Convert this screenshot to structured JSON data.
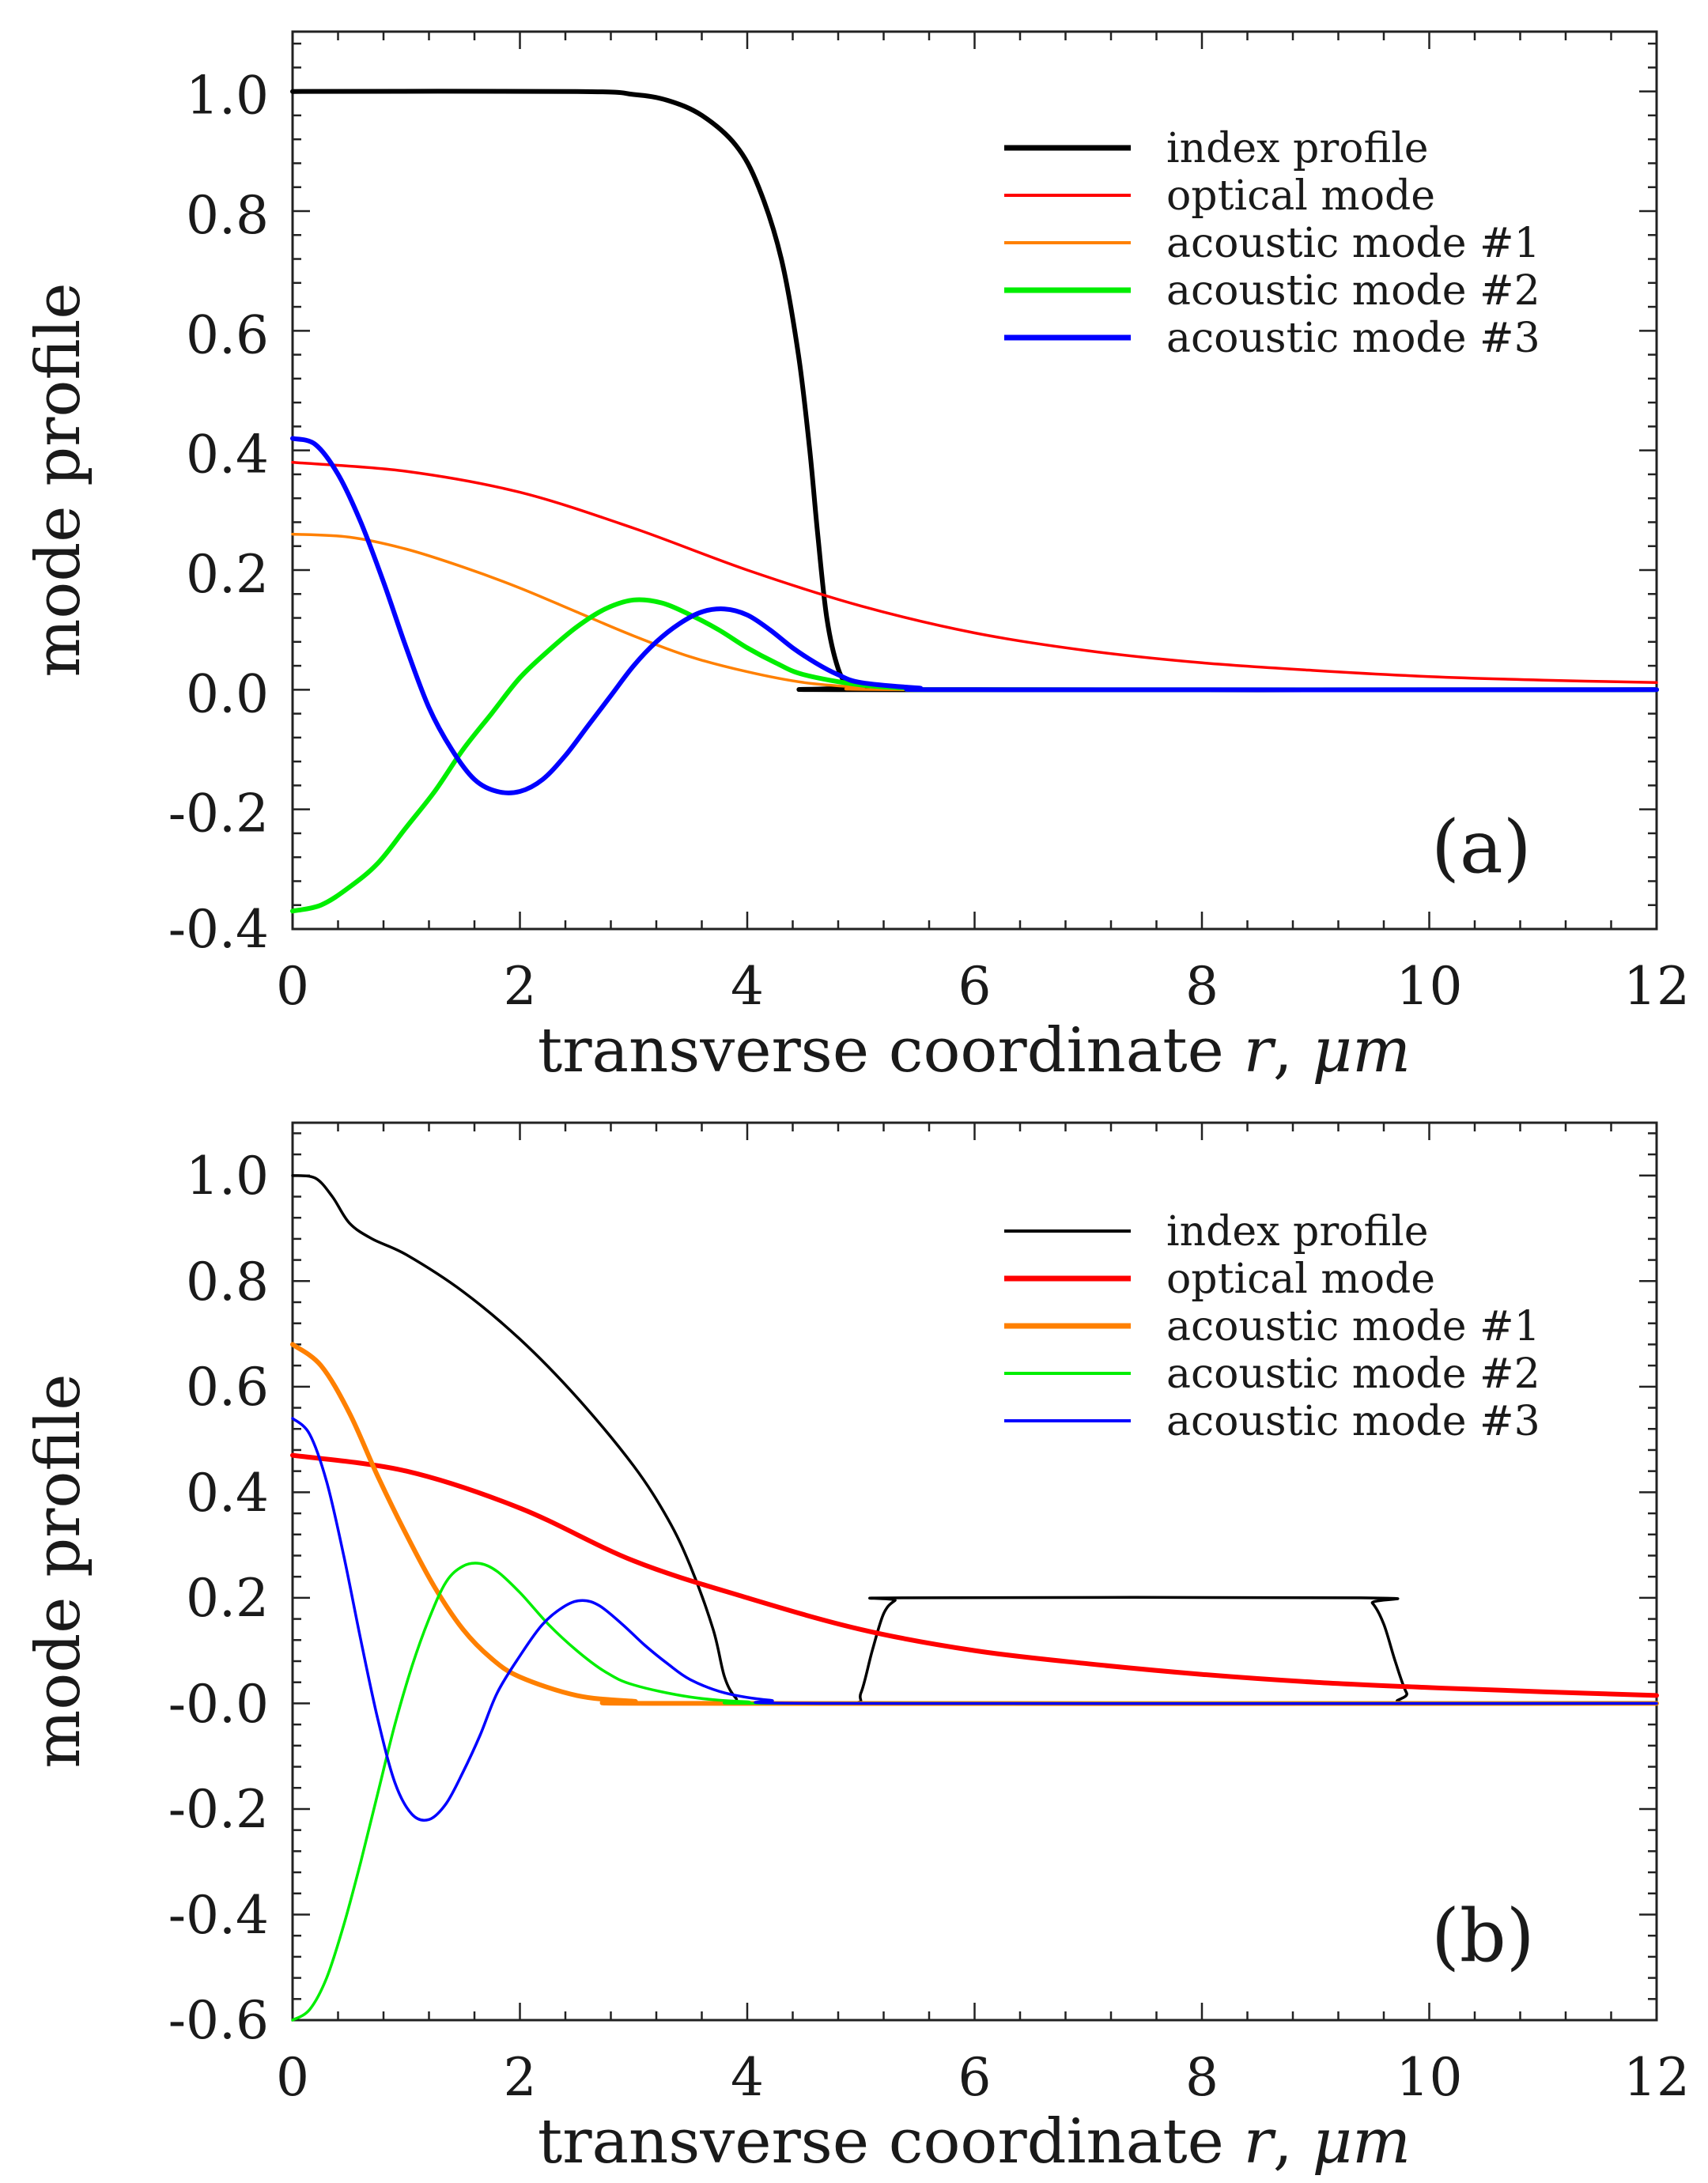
{
  "figure": {
    "charts": [
      {
        "panel_label": "(a)",
        "xlabel": "transverse coordinate",
        "xlabel_symbol": "r",
        "xlabel_unit": "μm",
        "ylabel": "mode profile",
        "x_ticks": [
          "0",
          "2",
          "4",
          "6",
          "8",
          "10",
          "12"
        ],
        "y_ticks": [
          "1.0",
          "0.8",
          "0.6",
          "0.4",
          "0.2",
          "0.0",
          "-0.2",
          "-0.4"
        ],
        "legend": [
          "index profile",
          "optical mode",
          "acoustic mode #1",
          "acoustic mode #2",
          "acoustic mode #3"
        ]
      },
      {
        "panel_label": "(b)",
        "xlabel": "transverse coordinate",
        "xlabel_symbol": "r",
        "xlabel_unit": "μm",
        "ylabel": "mode profile",
        "x_ticks": [
          "0",
          "2",
          "4",
          "6",
          "8",
          "10",
          "12"
        ],
        "y_ticks": [
          "1.0",
          "0.8",
          "0.6",
          "0.4",
          "0.2",
          "-0.0",
          "-0.2",
          "-0.4",
          "-0.6"
        ],
        "legend": [
          "index profile",
          "optical mode",
          "acoustic mode #1",
          "acoustic mode #2",
          "acoustic mode #3"
        ]
      }
    ]
  },
  "chart_data": [
    {
      "type": "line",
      "panel": "(a)",
      "xlabel": "transverse coordinate r, μm",
      "ylabel": "mode profile",
      "xlim": [
        0,
        12
      ],
      "ylim": [
        -0.4,
        1.1
      ],
      "x_ticks": [
        0,
        2,
        4,
        6,
        8,
        10,
        12
      ],
      "y_ticks": [
        1.0,
        0.8,
        0.6,
        0.4,
        0.2,
        0.0,
        -0.2,
        -0.4
      ],
      "legend_position": "top-right",
      "series": [
        {
          "name": "index profile",
          "color": "#000000",
          "width": "thick",
          "points": [
            [
              0,
              1.0
            ],
            [
              2.5,
              1.0
            ],
            [
              3.0,
              0.995
            ],
            [
              3.3,
              0.985
            ],
            [
              3.6,
              0.96
            ],
            [
              3.9,
              0.91
            ],
            [
              4.1,
              0.84
            ],
            [
              4.3,
              0.72
            ],
            [
              4.45,
              0.56
            ],
            [
              4.55,
              0.4
            ],
            [
              4.62,
              0.26
            ],
            [
              4.7,
              0.12
            ],
            [
              4.8,
              0.035
            ],
            [
              4.9,
              0.005
            ],
            [
              5.0,
              0.0
            ],
            [
              12,
              0.0
            ]
          ]
        },
        {
          "name": "optical mode",
          "color": "#ff0000",
          "width": "thin",
          "points": [
            [
              0,
              0.38
            ],
            [
              1,
              0.365
            ],
            [
              2,
              0.33
            ],
            [
              3,
              0.27
            ],
            [
              4,
              0.2
            ],
            [
              5,
              0.14
            ],
            [
              6,
              0.095
            ],
            [
              7,
              0.065
            ],
            [
              8,
              0.045
            ],
            [
              9,
              0.032
            ],
            [
              10,
              0.022
            ],
            [
              11,
              0.016
            ],
            [
              12,
              0.012
            ]
          ]
        },
        {
          "name": "acoustic mode #1",
          "color": "#ff8000",
          "width": "thin",
          "points": [
            [
              0,
              0.26
            ],
            [
              0.5,
              0.255
            ],
            [
              1,
              0.235
            ],
            [
              1.5,
              0.205
            ],
            [
              2,
              0.17
            ],
            [
              2.5,
              0.13
            ],
            [
              3,
              0.09
            ],
            [
              3.5,
              0.055
            ],
            [
              4,
              0.03
            ],
            [
              4.5,
              0.012
            ],
            [
              5,
              0.004
            ],
            [
              5.5,
              0.0
            ],
            [
              12,
              0.0
            ]
          ]
        },
        {
          "name": "acoustic mode #2",
          "color": "#00ee00",
          "width": "thick",
          "points": [
            [
              0,
              -0.37
            ],
            [
              0.25,
              -0.36
            ],
            [
              0.5,
              -0.33
            ],
            [
              0.75,
              -0.29
            ],
            [
              1,
              -0.23
            ],
            [
              1.25,
              -0.17
            ],
            [
              1.5,
              -0.1
            ],
            [
              1.75,
              -0.04
            ],
            [
              2,
              0.02
            ],
            [
              2.25,
              0.065
            ],
            [
              2.5,
              0.105
            ],
            [
              2.75,
              0.135
            ],
            [
              3,
              0.15
            ],
            [
              3.25,
              0.145
            ],
            [
              3.5,
              0.125
            ],
            [
              3.75,
              0.1
            ],
            [
              4,
              0.07
            ],
            [
              4.25,
              0.045
            ],
            [
              4.5,
              0.025
            ],
            [
              5,
              0.008
            ],
            [
              5.5,
              0.002
            ],
            [
              6,
              0.0
            ],
            [
              12,
              0.0
            ]
          ]
        },
        {
          "name": "acoustic mode #3",
          "color": "#0000ff",
          "width": "thick",
          "points": [
            [
              0,
              0.42
            ],
            [
              0.2,
              0.41
            ],
            [
              0.4,
              0.36
            ],
            [
              0.6,
              0.28
            ],
            [
              0.8,
              0.18
            ],
            [
              1.0,
              0.07
            ],
            [
              1.2,
              -0.03
            ],
            [
              1.4,
              -0.1
            ],
            [
              1.6,
              -0.15
            ],
            [
              1.8,
              -0.17
            ],
            [
              2.0,
              -0.17
            ],
            [
              2.2,
              -0.15
            ],
            [
              2.4,
              -0.11
            ],
            [
              2.6,
              -0.06
            ],
            [
              2.8,
              -0.01
            ],
            [
              3.0,
              0.04
            ],
            [
              3.2,
              0.08
            ],
            [
              3.4,
              0.11
            ],
            [
              3.6,
              0.13
            ],
            [
              3.8,
              0.135
            ],
            [
              4.0,
              0.125
            ],
            [
              4.2,
              0.1
            ],
            [
              4.4,
              0.07
            ],
            [
              4.6,
              0.045
            ],
            [
              4.8,
              0.025
            ],
            [
              5.0,
              0.012
            ],
            [
              5.5,
              0.003
            ],
            [
              6,
              0.0
            ],
            [
              12,
              0.0
            ]
          ]
        }
      ]
    },
    {
      "type": "line",
      "panel": "(b)",
      "xlabel": "transverse coordinate r, μm",
      "ylabel": "mode profile",
      "xlim": [
        0,
        12
      ],
      "ylim": [
        -0.6,
        1.1
      ],
      "x_ticks": [
        0,
        2,
        4,
        6,
        8,
        10,
        12
      ],
      "y_ticks": [
        1.0,
        0.8,
        0.6,
        0.4,
        0.2,
        0.0,
        -0.2,
        -0.4,
        -0.6
      ],
      "legend_position": "top-right",
      "series": [
        {
          "name": "index profile",
          "color": "#000000",
          "width": "thin",
          "points": [
            [
              0,
              1.0
            ],
            [
              0.2,
              0.995
            ],
            [
              0.35,
              0.96
            ],
            [
              0.5,
              0.91
            ],
            [
              0.7,
              0.88
            ],
            [
              1,
              0.85
            ],
            [
              1.5,
              0.78
            ],
            [
              2,
              0.69
            ],
            [
              2.5,
              0.58
            ],
            [
              3,
              0.45
            ],
            [
              3.3,
              0.35
            ],
            [
              3.5,
              0.26
            ],
            [
              3.7,
              0.14
            ],
            [
              3.8,
              0.05
            ],
            [
              3.9,
              0.01
            ],
            [
              4.0,
              0.0
            ],
            [
              4.9,
              0.0
            ],
            [
              5.0,
              0.02
            ],
            [
              5.1,
              0.1
            ],
            [
              5.2,
              0.17
            ],
            [
              5.3,
              0.195
            ],
            [
              5.4,
              0.2
            ],
            [
              9.4,
              0.2
            ],
            [
              9.5,
              0.19
            ],
            [
              9.6,
              0.15
            ],
            [
              9.7,
              0.08
            ],
            [
              9.8,
              0.02
            ],
            [
              9.9,
              0.0
            ],
            [
              12,
              0.0
            ]
          ]
        },
        {
          "name": "optical mode",
          "color": "#ff0000",
          "width": "thick",
          "points": [
            [
              0,
              0.47
            ],
            [
              1,
              0.44
            ],
            [
              2,
              0.37
            ],
            [
              3,
              0.27
            ],
            [
              4,
              0.2
            ],
            [
              5,
              0.14
            ],
            [
              6,
              0.1
            ],
            [
              7,
              0.075
            ],
            [
              8,
              0.055
            ],
            [
              9,
              0.04
            ],
            [
              10,
              0.03
            ],
            [
              11,
              0.022
            ],
            [
              12,
              0.015
            ]
          ]
        },
        {
          "name": "acoustic mode #1",
          "color": "#ff8000",
          "width": "thick",
          "points": [
            [
              0,
              0.68
            ],
            [
              0.25,
              0.64
            ],
            [
              0.5,
              0.55
            ],
            [
              0.75,
              0.43
            ],
            [
              1,
              0.32
            ],
            [
              1.25,
              0.22
            ],
            [
              1.5,
              0.14
            ],
            [
              1.75,
              0.085
            ],
            [
              2,
              0.05
            ],
            [
              2.5,
              0.015
            ],
            [
              3,
              0.004
            ],
            [
              3.5,
              0.0
            ],
            [
              12,
              0.0
            ]
          ]
        },
        {
          "name": "acoustic mode #2",
          "color": "#00ee00",
          "width": "thin",
          "points": [
            [
              0,
              -0.6
            ],
            [
              0.15,
              -0.58
            ],
            [
              0.3,
              -0.52
            ],
            [
              0.45,
              -0.42
            ],
            [
              0.6,
              -0.3
            ],
            [
              0.75,
              -0.17
            ],
            [
              0.9,
              -0.04
            ],
            [
              1.05,
              0.07
            ],
            [
              1.2,
              0.16
            ],
            [
              1.35,
              0.23
            ],
            [
              1.5,
              0.26
            ],
            [
              1.65,
              0.265
            ],
            [
              1.8,
              0.25
            ],
            [
              2.0,
              0.21
            ],
            [
              2.25,
              0.15
            ],
            [
              2.5,
              0.1
            ],
            [
              2.75,
              0.06
            ],
            [
              3.0,
              0.035
            ],
            [
              3.5,
              0.012
            ],
            [
              4.0,
              0.003
            ],
            [
              4.5,
              0.0
            ],
            [
              12,
              0.0
            ]
          ]
        },
        {
          "name": "acoustic mode #3",
          "color": "#0000ff",
          "width": "thin",
          "points": [
            [
              0,
              0.54
            ],
            [
              0.15,
              0.51
            ],
            [
              0.3,
              0.42
            ],
            [
              0.45,
              0.28
            ],
            [
              0.6,
              0.12
            ],
            [
              0.75,
              -0.03
            ],
            [
              0.9,
              -0.15
            ],
            [
              1.05,
              -0.21
            ],
            [
              1.2,
              -0.22
            ],
            [
              1.35,
              -0.19
            ],
            [
              1.5,
              -0.13
            ],
            [
              1.65,
              -0.06
            ],
            [
              1.8,
              0.02
            ],
            [
              2.0,
              0.09
            ],
            [
              2.2,
              0.15
            ],
            [
              2.4,
              0.185
            ],
            [
              2.55,
              0.195
            ],
            [
              2.7,
              0.185
            ],
            [
              2.9,
              0.15
            ],
            [
              3.1,
              0.11
            ],
            [
              3.3,
              0.075
            ],
            [
              3.5,
              0.045
            ],
            [
              3.8,
              0.02
            ],
            [
              4.2,
              0.006
            ],
            [
              4.8,
              0.0
            ],
            [
              12,
              0.0
            ]
          ]
        }
      ]
    }
  ]
}
